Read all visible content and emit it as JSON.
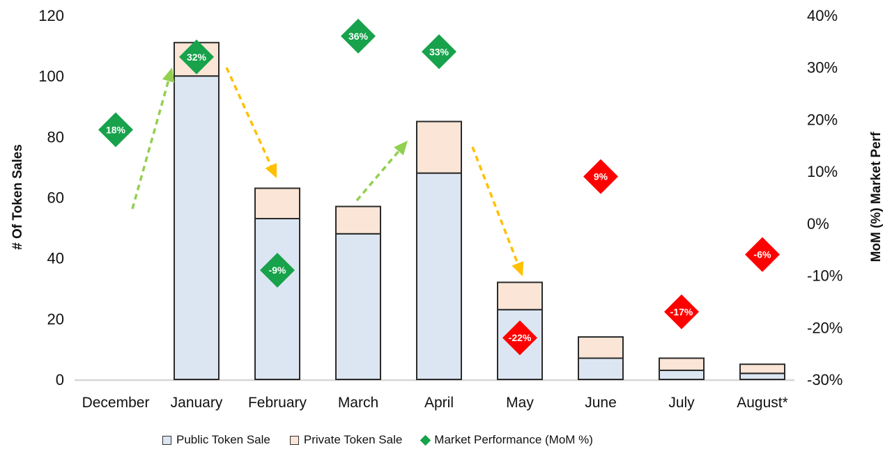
{
  "chart_data": {
    "type": "combo-stacked-bar-with-diamond-markers",
    "title": "",
    "categories": [
      "December",
      "January",
      "February",
      "March",
      "April",
      "May",
      "June",
      "July",
      "August*"
    ],
    "series": [
      {
        "name": "Public Token Sale",
        "type": "stacked-bar",
        "axis": "left",
        "color": "#DCE6F2",
        "values": [
          0,
          100,
          53,
          48,
          68,
          23,
          7,
          3,
          2
        ]
      },
      {
        "name": "Private Token Sale",
        "type": "stacked-bar",
        "axis": "left",
        "color": "#FBE5D6",
        "values": [
          0,
          11,
          10,
          9,
          17,
          9,
          7,
          4,
          3
        ]
      },
      {
        "name": "Market Performance (MoM %)",
        "type": "diamond-marker",
        "axis": "right",
        "values": [
          18,
          32,
          -9,
          36,
          33,
          -22,
          9,
          -17,
          -6
        ],
        "labels": [
          "18%",
          "32%",
          "-9%",
          "36%",
          "33%",
          "-22%",
          "9%",
          "-17%",
          "-6%"
        ],
        "point_colors": [
          "green",
          "green",
          "green",
          "green",
          "green",
          "red",
          "red",
          "red",
          "red"
        ]
      }
    ],
    "left_axis": {
      "title": "# Of Token Sales",
      "min": 0,
      "max": 120,
      "ticks": [
        0,
        20,
        40,
        60,
        80,
        100,
        120
      ],
      "tick_labels": [
        "0",
        "20",
        "40",
        "60",
        "80",
        "100",
        "120"
      ]
    },
    "right_axis": {
      "title": "MoM (%) Market Perf",
      "min": -30,
      "max": 40,
      "ticks": [
        -30,
        -20,
        -10,
        0,
        10,
        20,
        30,
        40
      ],
      "tick_labels": [
        "-30%",
        "-20%",
        "-10%",
        "0%",
        "10%",
        "20%",
        "30%",
        "40%"
      ]
    },
    "annotation_arrows": [
      {
        "color": "#92D050",
        "from": [
          190,
          300
        ],
        "to": [
          247,
          97
        ],
        "direction": "up"
      },
      {
        "color": "#FFC000",
        "from": [
          325,
          97
        ],
        "to": [
          397,
          256
        ],
        "direction": "down"
      },
      {
        "color": "#92D050",
        "from": [
          512,
          288
        ],
        "to": [
          585,
          202
        ],
        "direction": "up"
      },
      {
        "color": "#FFC000",
        "from": [
          678,
          211
        ],
        "to": [
          750,
          397
        ],
        "direction": "down"
      }
    ],
    "colors": {
      "green": "#17A24B",
      "red": "#FE0000",
      "bar_stroke": "#2A2A2A",
      "axis_line": "#D6D6D6",
      "marker_label": "#FFFFFF",
      "text": "#111111"
    },
    "grid": false,
    "legend_position": "bottom"
  }
}
